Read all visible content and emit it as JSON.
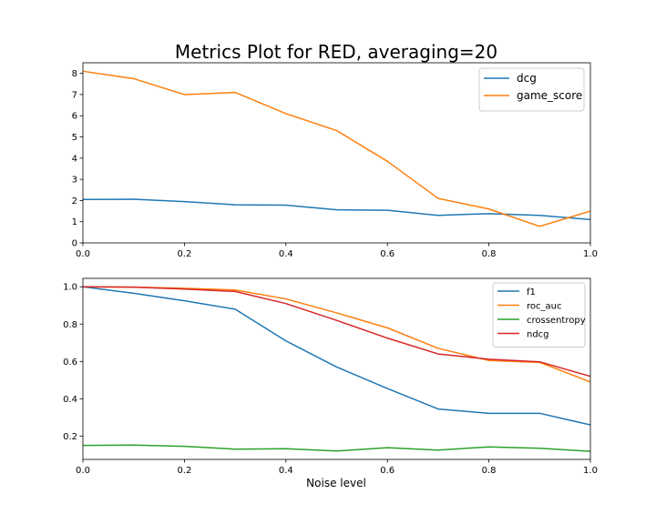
{
  "figure": {
    "title": "Metrics Plot for RED, averaging=20",
    "xlabel": "Noise level"
  },
  "chart_data": [
    {
      "type": "line",
      "title": "Metrics Plot for RED, averaging=20",
      "xlabel": "",
      "ylabel": "",
      "x": [
        0.0,
        0.1,
        0.2,
        0.3,
        0.4,
        0.5,
        0.6,
        0.7,
        0.8,
        0.9,
        1.0
      ],
      "xlim": [
        0,
        1
      ],
      "ylim": [
        0,
        8.5
      ],
      "xticks": [
        "0.0",
        "0.2",
        "0.4",
        "0.6",
        "0.8",
        "1.0"
      ],
      "yticks": [
        "0",
        "1",
        "2",
        "3",
        "4",
        "5",
        "6",
        "7",
        "8"
      ],
      "legend_position": "top-right",
      "grid": false,
      "series": [
        {
          "name": "dcg",
          "color": "#1f77b4",
          "values": [
            2.05,
            2.06,
            1.95,
            1.8,
            1.78,
            1.56,
            1.54,
            1.3,
            1.38,
            1.3,
            1.1
          ]
        },
        {
          "name": "game_score",
          "color": "#ff7f0e",
          "values": [
            8.1,
            7.75,
            7.0,
            7.1,
            6.1,
            5.3,
            3.85,
            2.1,
            1.6,
            0.78,
            1.5
          ]
        }
      ]
    },
    {
      "type": "line",
      "title": "",
      "xlabel": "Noise level",
      "ylabel": "",
      "x": [
        0.0,
        0.1,
        0.2,
        0.3,
        0.4,
        0.5,
        0.6,
        0.7,
        0.8,
        0.9,
        1.0
      ],
      "xlim": [
        0,
        1
      ],
      "ylim": [
        0.075,
        1.045
      ],
      "xticks": [
        "0.0",
        "0.2",
        "0.4",
        "0.6",
        "0.8",
        "1.0"
      ],
      "yticks": [
        "0.2",
        "0.4",
        "0.6",
        "0.8",
        "1.0"
      ],
      "legend_position": "top-right",
      "grid": false,
      "series": [
        {
          "name": "f1",
          "color": "#1f77b4",
          "values": [
            1.0,
            0.965,
            0.925,
            0.88,
            0.71,
            0.57,
            0.455,
            0.345,
            0.322,
            0.322,
            0.26
          ]
        },
        {
          "name": "roc_auc",
          "color": "#ff7f0e",
          "values": [
            1.0,
            0.998,
            0.992,
            0.983,
            0.935,
            0.86,
            0.78,
            0.67,
            0.605,
            0.595,
            0.49
          ]
        },
        {
          "name": "crossentropy",
          "color": "#2ca02c",
          "values": [
            0.15,
            0.152,
            0.145,
            0.13,
            0.132,
            0.12,
            0.138,
            0.125,
            0.142,
            0.135,
            0.118
          ]
        },
        {
          "name": "ndcg",
          "color": "#d62728",
          "values": [
            1.0,
            0.998,
            0.988,
            0.975,
            0.91,
            0.82,
            0.725,
            0.64,
            0.612,
            0.598,
            0.52
          ]
        }
      ]
    }
  ]
}
